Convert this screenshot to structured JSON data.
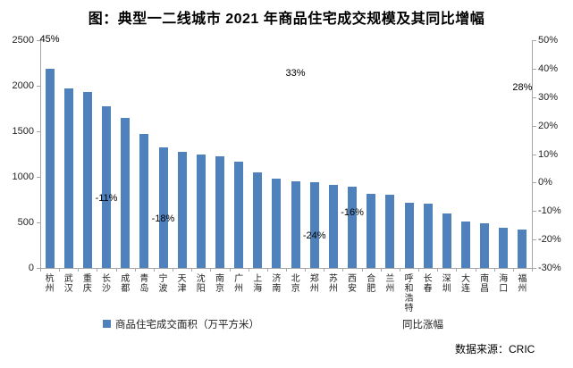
{
  "title": "图：典型一二线城市 2021 年商品住宅成交规模及其同比增幅",
  "source": "数据来源：CRIC",
  "legend": {
    "bar_series_label": "商品住宅成交面积（万平方米）",
    "line_series_label": "同比涨幅"
  },
  "colors": {
    "bar": "#4f81bd",
    "axis_line": "#a6a6a6",
    "text": "#000000"
  },
  "chart_data": {
    "type": "bar",
    "title": "图：典型一二线城市 2021 年商品住宅成交规模及其同比增幅",
    "xlabel": "",
    "ylabel_left": "商品住宅成交面积（万平方米）",
    "ylabel_right": "同比涨幅",
    "grid": false,
    "legend_position": "bottom",
    "categories": [
      "杭州",
      "武汉",
      "重庆",
      "长沙",
      "成都",
      "青岛",
      "宁波",
      "天津",
      "沈阳",
      "南京",
      "广州",
      "上海",
      "济南",
      "北京",
      "郑州",
      "苏州",
      "西安",
      "合肥",
      "兰州",
      "呼和浩特",
      "长春",
      "深圳",
      "大连",
      "南昌",
      "海口",
      "福州"
    ],
    "series": [
      {
        "name": "商品住宅成交面积（万平方米）",
        "type": "bar",
        "axis": "left",
        "values": [
          2190,
          1970,
          1930,
          1775,
          1645,
          1470,
          1320,
          1270,
          1245,
          1230,
          1165,
          1050,
          985,
          950,
          940,
          915,
          890,
          815,
          800,
          715,
          710,
          600,
          510,
          490,
          445,
          425
        ]
      },
      {
        "name": "同比涨幅",
        "type": "scatter",
        "axis": "right",
        "markers_visible": false,
        "visible_labels": [
          {
            "category": "杭州",
            "value": 45,
            "label": "45%"
          },
          {
            "category": "长沙",
            "value": -11,
            "label": "-11%"
          },
          {
            "category": "宁波",
            "value": -18,
            "label": "-18%"
          },
          {
            "category": "北京",
            "value": 33,
            "label": "33%"
          },
          {
            "category": "郑州",
            "value": -24,
            "label": "-24%"
          },
          {
            "category": "西安",
            "value": -16,
            "label": "-16%"
          },
          {
            "category": "福州",
            "value": 28,
            "label": "28%"
          }
        ]
      }
    ],
    "left_axis": {
      "min": 0,
      "max": 2500,
      "ticks": [
        0,
        500,
        1000,
        1500,
        2000,
        2500
      ]
    },
    "right_axis": {
      "min": -30,
      "max": 50,
      "ticks": [
        50,
        40,
        30,
        20,
        10,
        0,
        -10,
        -20,
        -30
      ],
      "format": "percent"
    }
  }
}
